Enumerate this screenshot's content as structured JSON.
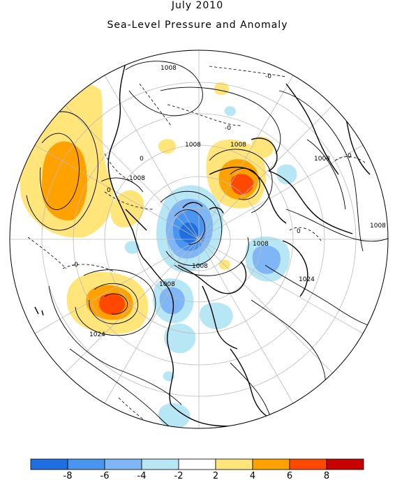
{
  "title": "July 2010",
  "subtitle": "Sea-Level Pressure and Anomaly",
  "contour_labels": [
    {
      "id": "c1",
      "text": "1008"
    },
    {
      "id": "c2",
      "text": "-0"
    },
    {
      "id": "c3",
      "text": "-0"
    },
    {
      "id": "c4",
      "text": "1008"
    },
    {
      "id": "c5",
      "text": "1008"
    },
    {
      "id": "c6",
      "text": "0"
    },
    {
      "id": "c7",
      "text": "1008"
    },
    {
      "id": "c8",
      "text": "1008"
    },
    {
      "id": "c9",
      "text": "0"
    },
    {
      "id": "c10",
      "text": "1008"
    },
    {
      "id": "c11",
      "text": "0"
    },
    {
      "id": "c12",
      "text": "1008"
    },
    {
      "id": "c13",
      "text": "1008"
    },
    {
      "id": "c14",
      "text": "1024"
    },
    {
      "id": "c15",
      "text": "-0"
    },
    {
      "id": "c16",
      "text": "1008"
    },
    {
      "id": "c17",
      "text": "1024"
    },
    {
      "id": "c18",
      "text": "0"
    }
  ],
  "colorbar": {
    "colors": [
      "#1f6fe0",
      "#4a95f0",
      "#7fb6f5",
      "#b7e6f4",
      "#ffffff",
      "#ffe57a",
      "#ffa200",
      "#ff4800",
      "#c80000"
    ],
    "tick_labels": [
      "-8",
      "-6",
      "-4",
      "-2",
      "2",
      "4",
      "6",
      "8"
    ]
  },
  "anomaly_colors": {
    "pos1": "#ffe57a",
    "pos2": "#ffa200",
    "pos3": "#ff4800",
    "neg1": "#b7e6f4",
    "neg2": "#7fb6f5",
    "neg3": "#4a95f0",
    "neg4": "#1f6fe0"
  }
}
